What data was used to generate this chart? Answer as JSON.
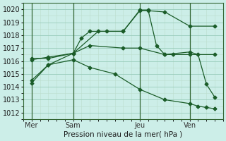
{
  "background_color": "#cceee8",
  "plot_bg": "#cceee8",
  "grid_color_major": "#99ccbb",
  "grid_color_minor": "#bbddcc",
  "line_color": "#1a5c28",
  "vline_color": "#336633",
  "title": "Pression niveau de la mer( hPa )",
  "ylim": [
    1011.5,
    1020.5
  ],
  "yticks": [
    1012,
    1013,
    1014,
    1015,
    1016,
    1017,
    1018,
    1019,
    1020
  ],
  "xlim": [
    0,
    12
  ],
  "day_ticks": [
    0.5,
    3,
    7,
    10
  ],
  "day_labels": [
    "Mer",
    "Sam",
    "Jeu",
    "Ven"
  ],
  "vlines_x": [
    0.5,
    3,
    7,
    10
  ],
  "lines": [
    {
      "x": [
        0.5,
        1.5,
        3.0,
        4.5,
        6.0,
        7.0,
        7.5,
        8.5,
        10.0,
        11.5
      ],
      "y": [
        1014.5,
        1015.7,
        1016.6,
        1018.3,
        1018.3,
        1019.9,
        1019.9,
        1019.8,
        1018.7,
        1018.7
      ]
    },
    {
      "x": [
        0.5,
        1.5,
        3.0,
        3.5,
        4.0,
        5.0,
        6.0,
        7.0,
        7.5,
        8.0,
        8.5,
        9.0,
        10.0,
        11.5
      ],
      "y": [
        1016.2,
        1016.2,
        1016.6,
        1017.8,
        1018.3,
        1018.3,
        1018.3,
        1019.95,
        1019.95,
        1017.2,
        1016.5,
        1016.5,
        1016.5,
        1016.5
      ]
    },
    {
      "x": [
        0.5,
        1.5,
        3.0,
        4.0,
        6.0,
        7.0,
        8.5,
        10.0,
        10.5,
        11.0,
        11.5
      ],
      "y": [
        1016.1,
        1016.3,
        1016.6,
        1017.2,
        1017.0,
        1017.0,
        1016.5,
        1016.7,
        1016.5,
        1014.2,
        1013.2
      ]
    },
    {
      "x": [
        0.5,
        1.5,
        3.0,
        4.0,
        5.5,
        7.0,
        8.5,
        10.0,
        10.5,
        11.0,
        11.5
      ],
      "y": [
        1014.3,
        1015.7,
        1016.1,
        1015.5,
        1015.0,
        1013.8,
        1013.0,
        1012.7,
        1012.5,
        1012.4,
        1012.3
      ]
    }
  ]
}
